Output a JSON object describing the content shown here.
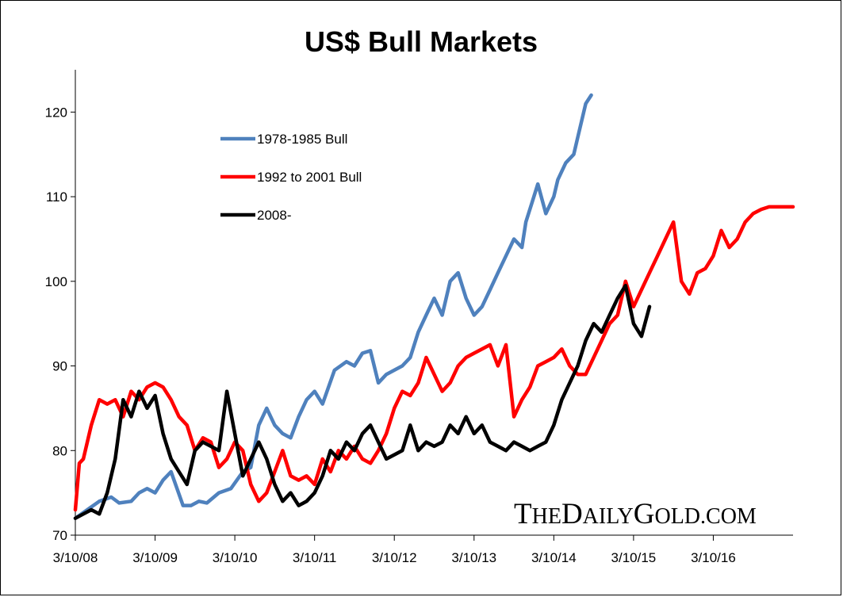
{
  "chart_data": {
    "type": "line",
    "title": "US$ Bull Markets",
    "ylim": [
      70,
      125
    ],
    "yticks": [
      70,
      80,
      90,
      100,
      110,
      120
    ],
    "xlim": [
      0,
      9
    ],
    "xtick_labels": [
      "3/10/08",
      "3/10/09",
      "3/10/10",
      "3/10/11",
      "3/10/12",
      "3/10/13",
      "3/10/14",
      "3/10/15",
      "3/10/16"
    ],
    "grid": false,
    "legend_position": "top-left",
    "watermark_big": [
      "T",
      "D",
      "G"
    ],
    "watermark_small": [
      "HE",
      "AILY",
      "OLD.COM"
    ],
    "series": [
      {
        "name": "1978-1985 Bull",
        "color": "#4f81bd",
        "x": [
          0.0,
          0.15,
          0.3,
          0.45,
          0.55,
          0.7,
          0.8,
          0.9,
          1.0,
          1.1,
          1.2,
          1.35,
          1.45,
          1.55,
          1.65,
          1.8,
          1.95,
          2.1,
          2.2,
          2.3,
          2.4,
          2.5,
          2.6,
          2.7,
          2.8,
          2.9,
          3.0,
          3.1,
          3.25,
          3.4,
          3.5,
          3.6,
          3.7,
          3.8,
          3.9,
          4.0,
          4.1,
          4.2,
          4.3,
          4.4,
          4.5,
          4.6,
          4.7,
          4.8,
          4.9,
          5.0,
          5.1,
          5.2,
          5.3,
          5.4,
          5.5,
          5.6,
          5.65,
          5.75,
          5.8,
          5.9,
          6.0,
          6.05,
          6.15,
          6.25,
          6.3,
          6.4,
          6.47
        ],
        "y": [
          72.0,
          73.0,
          74.0,
          74.5,
          73.8,
          74.0,
          75.0,
          75.5,
          75.0,
          76.5,
          77.5,
          73.5,
          73.5,
          74.0,
          73.8,
          75.0,
          75.5,
          77.5,
          78.0,
          83.0,
          85.0,
          83.0,
          82.0,
          81.5,
          84.0,
          86.0,
          87.0,
          85.5,
          89.5,
          90.5,
          90.0,
          91.5,
          91.8,
          88.0,
          89.0,
          89.5,
          90.0,
          91.0,
          94.0,
          96.0,
          98.0,
          96.0,
          100.0,
          101.0,
          98.0,
          96.0,
          97.0,
          99.0,
          101.0,
          103.0,
          105.0,
          104.0,
          107.0,
          110.0,
          111.5,
          108.0,
          110.0,
          112.0,
          114.0,
          115.0,
          117.0,
          121.0,
          122.0
        ]
      },
      {
        "name": "1992 to 2001 Bull",
        "color": "#ff0000",
        "x": [
          0.0,
          0.05,
          0.1,
          0.2,
          0.3,
          0.4,
          0.5,
          0.6,
          0.7,
          0.8,
          0.9,
          1.0,
          1.1,
          1.2,
          1.3,
          1.4,
          1.5,
          1.6,
          1.7,
          1.8,
          1.9,
          2.0,
          2.1,
          2.2,
          2.3,
          2.4,
          2.5,
          2.6,
          2.7,
          2.8,
          2.9,
          3.0,
          3.1,
          3.2,
          3.3,
          3.4,
          3.5,
          3.6,
          3.7,
          3.8,
          3.9,
          4.0,
          4.1,
          4.2,
          4.3,
          4.4,
          4.5,
          4.6,
          4.7,
          4.8,
          4.9,
          5.0,
          5.1,
          5.2,
          5.3,
          5.4,
          5.5,
          5.6,
          5.7,
          5.8,
          5.9,
          6.0,
          6.1,
          6.2,
          6.3,
          6.4,
          6.5,
          6.6,
          6.7,
          6.8,
          6.9,
          7.0,
          7.1,
          7.2,
          7.3,
          7.4,
          7.5,
          7.6,
          7.7,
          7.8,
          7.9,
          8.0,
          8.1,
          8.2,
          8.3,
          8.4,
          8.5,
          8.6,
          8.7,
          8.8,
          8.9,
          9.0
        ],
        "y": [
          73.0,
          78.5,
          79.0,
          83.0,
          86.0,
          85.5,
          86.0,
          84.0,
          87.0,
          86.0,
          87.5,
          88.0,
          87.5,
          86.0,
          84.0,
          83.0,
          80.0,
          81.5,
          81.0,
          78.0,
          79.0,
          81.0,
          80.0,
          76.0,
          74.0,
          75.0,
          77.5,
          80.0,
          77.0,
          76.5,
          77.0,
          76.0,
          79.0,
          77.5,
          80.0,
          79.0,
          80.5,
          79.0,
          78.5,
          80.0,
          82.0,
          85.0,
          87.0,
          86.5,
          88.0,
          91.0,
          89.0,
          87.0,
          88.0,
          90.0,
          91.0,
          91.5,
          92.0,
          92.5,
          90.0,
          92.5,
          84.0,
          86.0,
          87.5,
          90.0,
          90.5,
          91.0,
          92.0,
          90.0,
          89.0,
          89.0,
          91.0,
          93.0,
          95.0,
          96.0,
          100.0,
          97.0,
          99.0,
          101.0,
          103.0,
          105.0,
          107.0,
          100.0,
          98.5,
          101.0,
          101.5,
          103.0,
          106.0,
          104.0,
          105.0,
          107.0,
          108.0,
          108.5,
          108.8,
          108.8,
          108.8,
          108.8
        ]
      },
      {
        "name": "2008-",
        "color": "#000000",
        "x": [
          0.0,
          0.1,
          0.2,
          0.3,
          0.4,
          0.5,
          0.6,
          0.7,
          0.8,
          0.9,
          1.0,
          1.1,
          1.2,
          1.3,
          1.4,
          1.5,
          1.6,
          1.7,
          1.8,
          1.9,
          2.0,
          2.1,
          2.2,
          2.3,
          2.4,
          2.5,
          2.6,
          2.7,
          2.8,
          2.9,
          3.0,
          3.1,
          3.2,
          3.3,
          3.4,
          3.5,
          3.6,
          3.7,
          3.8,
          3.9,
          4.0,
          4.1,
          4.2,
          4.3,
          4.4,
          4.5,
          4.6,
          4.7,
          4.8,
          4.9,
          5.0,
          5.1,
          5.2,
          5.3,
          5.4,
          5.5,
          5.6,
          5.7,
          5.8,
          5.9,
          6.0,
          6.1,
          6.2,
          6.3,
          6.4,
          6.5,
          6.6,
          6.7,
          6.8,
          6.9,
          7.0,
          7.1,
          7.2
        ],
        "y": [
          72.0,
          72.5,
          73.0,
          72.5,
          75.0,
          79.0,
          86.0,
          84.0,
          87.0,
          85.0,
          86.5,
          82.0,
          79.0,
          77.5,
          76.0,
          80.0,
          81.0,
          80.5,
          80.0,
          87.0,
          82.0,
          77.0,
          79.0,
          81.0,
          79.0,
          76.0,
          74.0,
          75.0,
          73.5,
          74.0,
          75.0,
          77.0,
          80.0,
          79.0,
          81.0,
          80.0,
          82.0,
          83.0,
          81.0,
          79.0,
          79.5,
          80.0,
          83.0,
          80.0,
          81.0,
          80.5,
          81.0,
          83.0,
          82.0,
          84.0,
          82.0,
          83.0,
          81.0,
          80.5,
          80.0,
          81.0,
          80.5,
          80.0,
          80.5,
          81.0,
          83.0,
          86.0,
          88.0,
          90.0,
          93.0,
          95.0,
          94.0,
          96.0,
          98.0,
          99.5,
          95.0,
          93.5,
          97.0
        ]
      }
    ]
  }
}
